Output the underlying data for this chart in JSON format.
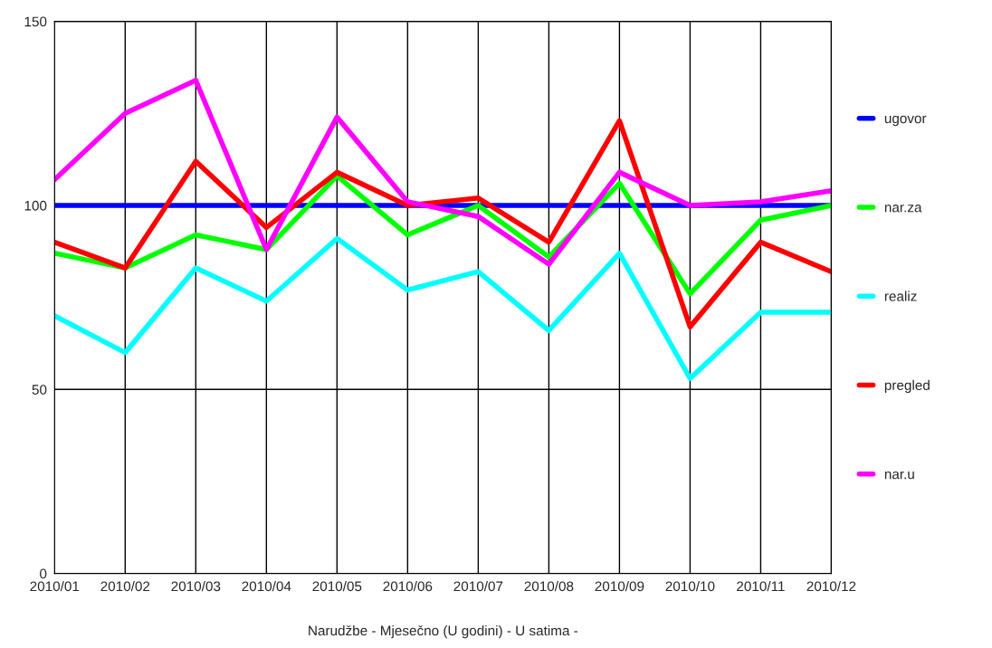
{
  "chart_data": {
    "type": "line",
    "xlabel": "Narudžbe - Mjesečno (U godini) - U satima -",
    "categories": [
      "2010/01",
      "2010/02",
      "2010/03",
      "2010/04",
      "2010/05",
      "2010/06",
      "2010/07",
      "2010/08",
      "2010/09",
      "2010/10",
      "2010/11",
      "2010/12"
    ],
    "series": [
      {
        "name": "ugovor",
        "color": "#0000ff",
        "values": [
          100,
          100,
          100,
          100,
          100,
          100,
          100,
          100,
          100,
          100,
          100,
          100
        ]
      },
      {
        "name": "nar.za",
        "color": "#00ff00",
        "values": [
          87,
          83,
          92,
          88,
          108,
          92,
          100,
          86,
          106,
          76,
          96,
          100
        ]
      },
      {
        "name": "realiz",
        "color": "#00ffff",
        "values": [
          70,
          60,
          83,
          74,
          91,
          77,
          82,
          66,
          87,
          53,
          71,
          71
        ]
      },
      {
        "name": "pregled",
        "color": "#ff0000",
        "values": [
          90,
          83,
          112,
          94,
          109,
          100,
          102,
          90,
          123,
          67,
          90,
          82
        ]
      },
      {
        "name": "nar.u",
        "color": "#ff00ff",
        "values": [
          107,
          125,
          134,
          88,
          124,
          101,
          97,
          84,
          109,
          100,
          101,
          104
        ]
      }
    ],
    "ylim": [
      0,
      150
    ],
    "yticks": [
      0,
      50,
      100,
      150
    ],
    "grid": true,
    "legend": "right",
    "marker": "none",
    "line_style": "solid"
  }
}
